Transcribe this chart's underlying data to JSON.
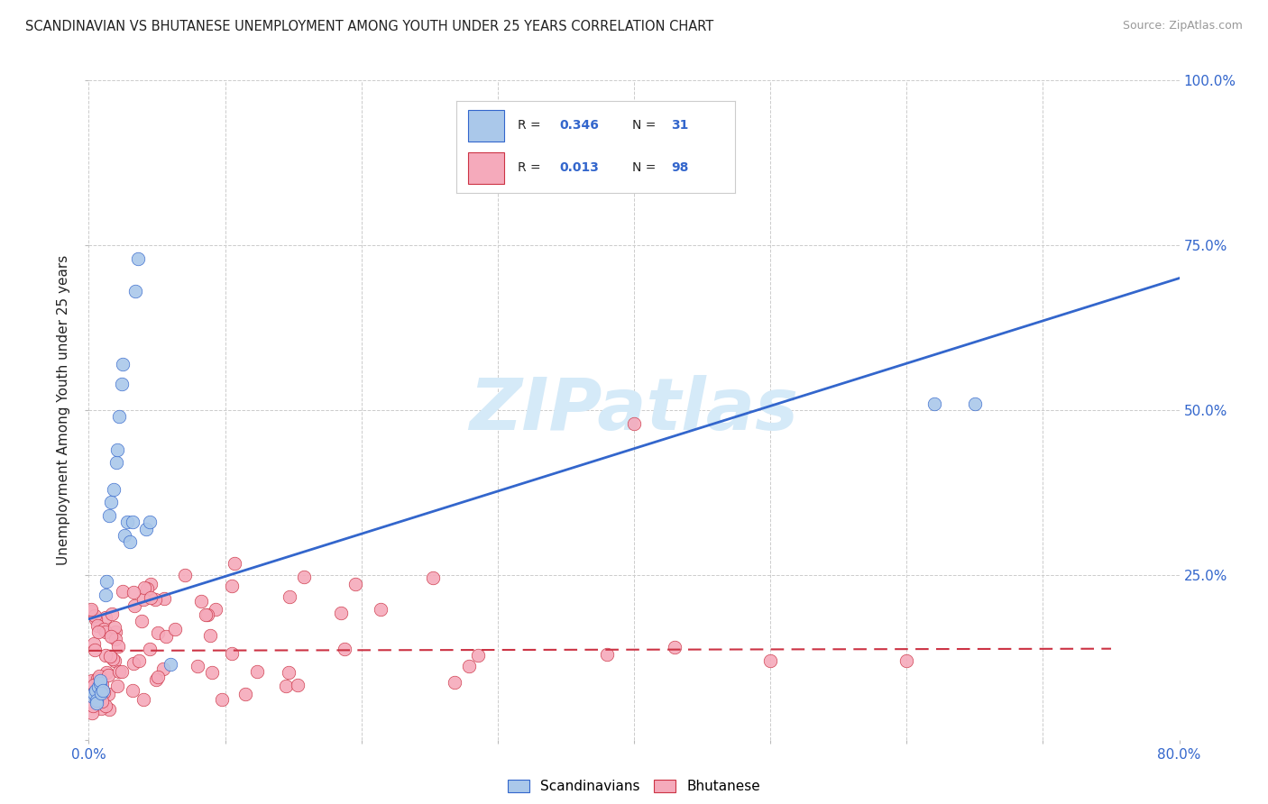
{
  "title": "SCANDINAVIAN VS BHUTANESE UNEMPLOYMENT AMONG YOUTH UNDER 25 YEARS CORRELATION CHART",
  "source": "Source: ZipAtlas.com",
  "ylabel": "Unemployment Among Youth under 25 years",
  "xlim": [
    0.0,
    0.8
  ],
  "ylim": [
    0.0,
    1.0
  ],
  "yticks": [
    0.0,
    0.25,
    0.5,
    0.75,
    1.0
  ],
  "yticklabels_right": [
    "",
    "25.0%",
    "50.0%",
    "75.0%",
    "100.0%"
  ],
  "xtick_left_label": "0.0%",
  "xtick_right_label": "80.0%",
  "legend_r1": "0.346",
  "legend_n1": "31",
  "legend_r2": "0.013",
  "legend_n2": "98",
  "legend_label1": "Scandinavians",
  "legend_label2": "Bhutanese",
  "color_scand": "#aac8ea",
  "color_bhut": "#f5aabb",
  "color_line_scand": "#3366cc",
  "color_line_bhut": "#cc3344",
  "color_text_blue": "#3366cc",
  "color_text_dark": "#222222",
  "color_grid": "#cccccc",
  "watermark_text": "ZIPatlas",
  "watermark_color": "#d5eaf8",
  "scand_line_x0": 0.0,
  "scand_line_y0": 0.183,
  "scand_line_x1": 0.8,
  "scand_line_y1": 0.7,
  "bhut_line_x0": 0.0,
  "bhut_line_y0": 0.135,
  "bhut_line_x1": 0.75,
  "bhut_line_y1": 0.138
}
